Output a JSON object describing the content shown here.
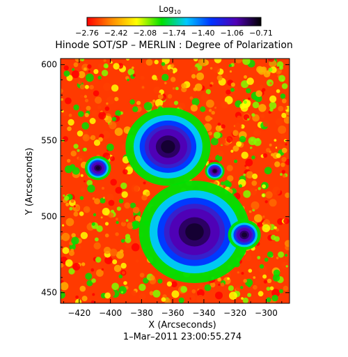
{
  "chart_data": {
    "type": "heatmap",
    "instrument": "Hinode SOT/SP",
    "separator": "–",
    "observer": "MERLIN : Degree of Polarization",
    "xlabel": "X (Arcseconds)",
    "ylabel": "Y (Arcseconds)",
    "timestamp": "1–Mar–2011 23:00:55.274",
    "xlim": [
      -432,
      -285
    ],
    "ylim": [
      443,
      604
    ],
    "xticks": [
      -420,
      -400,
      -380,
      -360,
      -340,
      -320,
      -300
    ],
    "yticks": [
      450,
      500,
      550,
      600
    ],
    "colorbar": {
      "label_base": "Log",
      "label_sub": "10",
      "ticks": [
        "−2.76",
        "−2.42",
        "−2.08",
        "−1.74",
        "−1.40",
        "−1.06",
        "−0.71"
      ],
      "colors": [
        "#ff0000",
        "#ff8c00",
        "#ffff00",
        "#00e000",
        "#00c8ff",
        "#0032ff",
        "#5000b4",
        "#000000"
      ]
    },
    "features": [
      {
        "name": "sunspot",
        "x": -363,
        "y": 546,
        "r": 13
      },
      {
        "name": "sunspot",
        "x": -346,
        "y": 490,
        "r": 17
      },
      {
        "name": "pore",
        "x": -314,
        "y": 488,
        "r": 5
      },
      {
        "name": "pore",
        "x": -408,
        "y": 532,
        "r": 4
      },
      {
        "name": "pore",
        "x": -333,
        "y": 530,
        "r": 3
      }
    ]
  }
}
